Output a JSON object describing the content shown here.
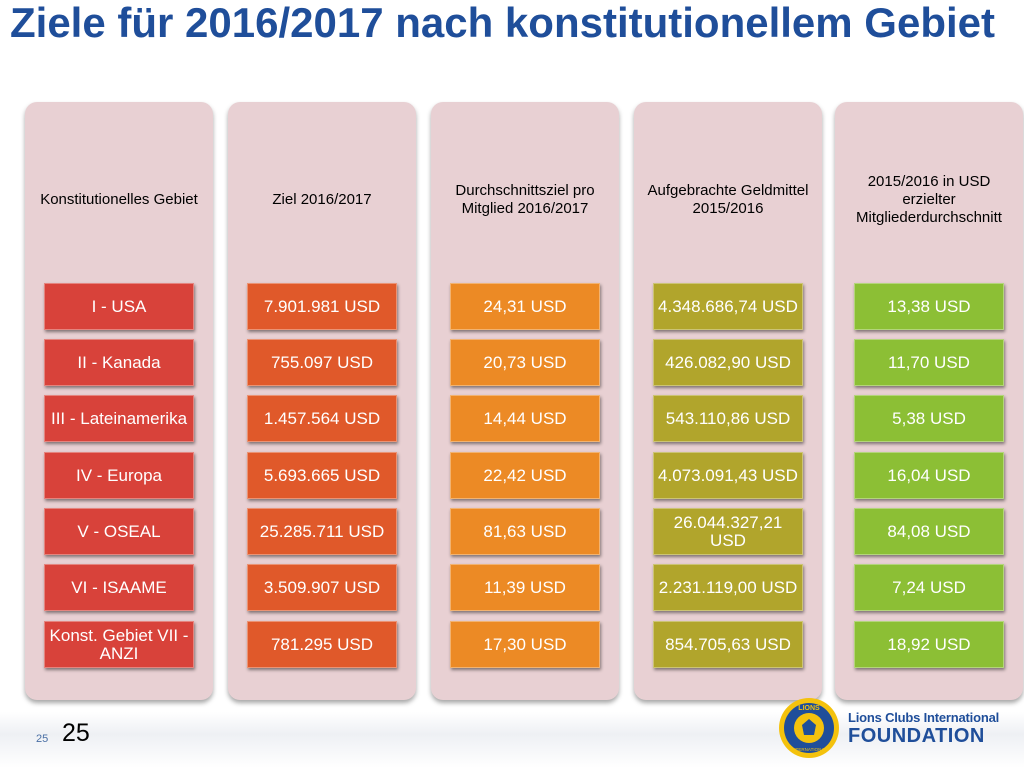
{
  "title": "Ziele für 2016/2017 nach konstitutionellem Gebiet",
  "colors": {
    "title": "#1f4e9a",
    "panel": "#e8d0d3",
    "red": "#d43a35",
    "orange_red": "#e0592a",
    "orange": "#ec8a25",
    "olive": "#b1a52c",
    "green": "#8cbf35"
  },
  "columns": [
    {
      "header": "Konstitutionelles Gebiet",
      "cells": [
        "I - USA",
        "II - Kanada",
        "III - Lateinamerika",
        "IV - Europa",
        "V - OSEAL",
        "VI - ISAAME",
        "Konst. Gebiet VII - ANZI"
      ]
    },
    {
      "header": "Ziel 2016/2017",
      "cells": [
        "7.901.981 USD",
        "755.097 USD",
        "1.457.564 USD",
        "5.693.665 USD",
        "25.285.711 USD",
        "3.509.907 USD",
        "781.295 USD"
      ]
    },
    {
      "header": "Durchschnittsziel pro Mitglied 2016/2017",
      "cells": [
        "24,31 USD",
        "20,73 USD",
        "14,44 USD",
        "22,42 USD",
        "81,63 USD",
        "11,39 USD",
        "17,30 USD"
      ]
    },
    {
      "header": "Aufgebrachte Geldmittel 2015/2016",
      "cells": [
        "4.348.686,74 USD",
        "426.082,90 USD",
        "543.110,86 USD",
        "4.073.091,43 USD",
        "26.044.327,21 USD",
        "2.231.119,00 USD",
        "854.705,63 USD"
      ]
    },
    {
      "header": "2015/2016 in USD erzielter Mitgliederdurchschnitt",
      "cells": [
        "13,38 USD",
        "11,70 USD",
        "5,38 USD",
        "16,04 USD",
        "84,08 USD",
        "7,24 USD",
        "18,92 USD"
      ]
    }
  ],
  "footer": {
    "page_small": "25",
    "page_big": "25",
    "logo_text_top": "LIONS",
    "logo_text_bottom": "INTERNATIONAL",
    "brand_line1": "Lions Clubs International",
    "brand_line2": "FOUNDATION"
  }
}
